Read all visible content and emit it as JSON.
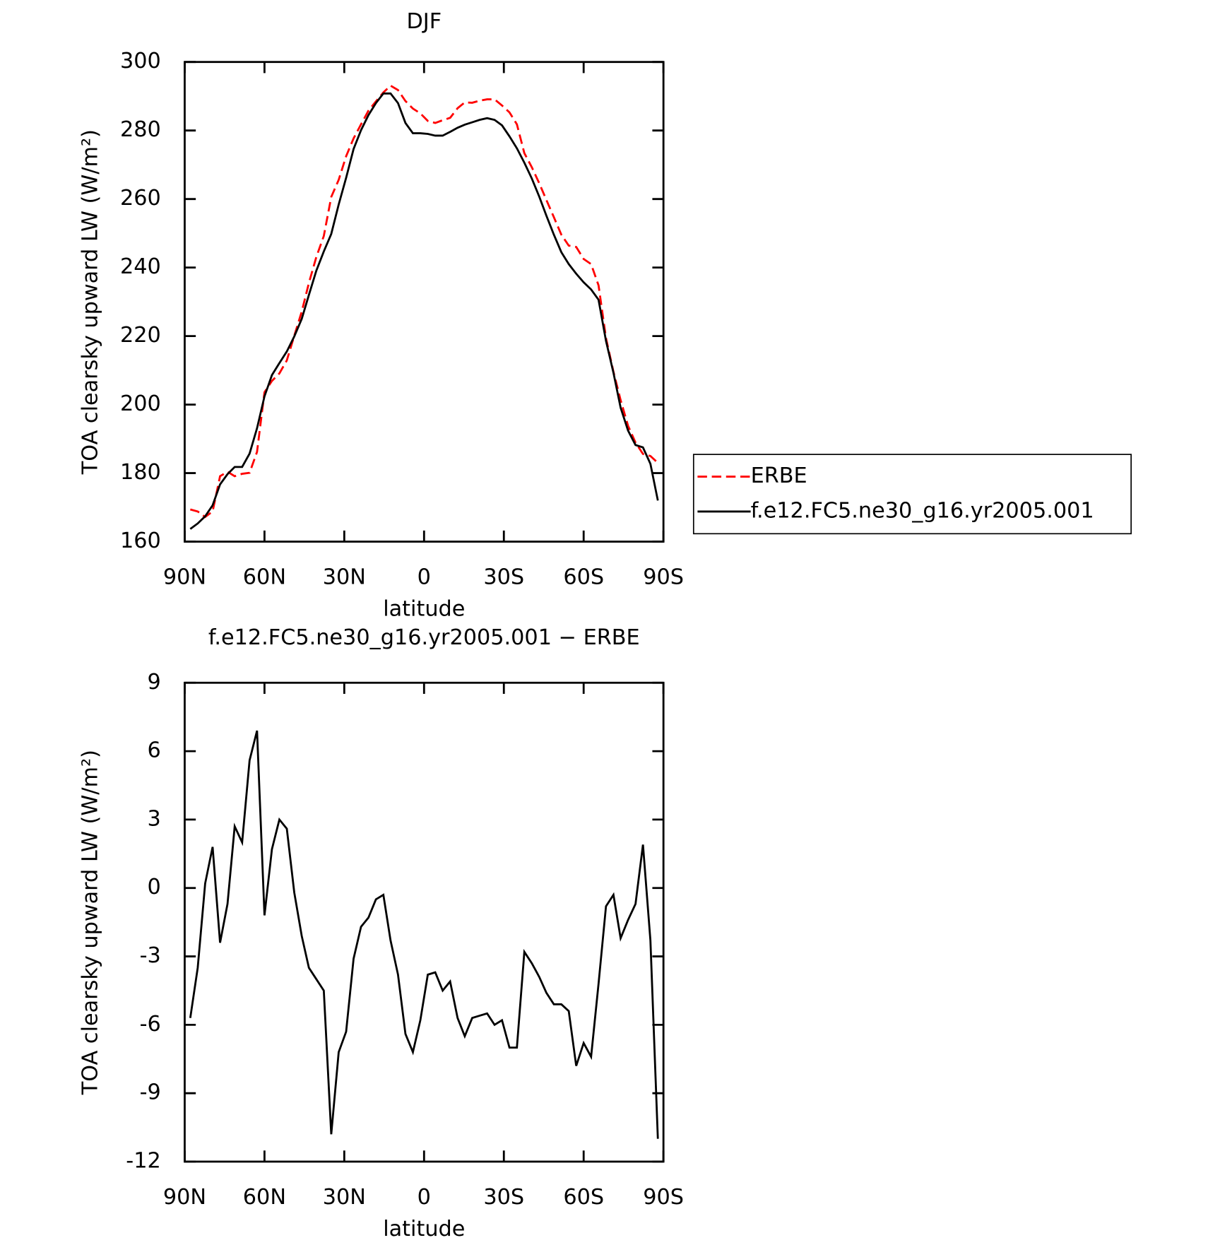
{
  "chart_data": [
    {
      "type": "line",
      "title": "DJF",
      "x_label": "latitude",
      "y_label": "TOA clearsky upward LW (W/m²)",
      "x": [
        87.9,
        85.1,
        82.3,
        79.5,
        76.7,
        73.9,
        71.2,
        68.4,
        65.6,
        62.8,
        60.0,
        57.2,
        54.4,
        51.6,
        48.8,
        46.0,
        43.3,
        40.5,
        37.7,
        34.9,
        32.1,
        29.3,
        26.5,
        23.7,
        20.9,
        18.1,
        15.3,
        12.6,
        9.8,
        7.0,
        4.2,
        1.4,
        -1.4,
        -4.2,
        -7.0,
        -9.8,
        -12.6,
        -15.3,
        -18.1,
        -20.9,
        -23.7,
        -26.5,
        -29.3,
        -32.1,
        -34.9,
        -37.7,
        -40.5,
        -43.3,
        -46.0,
        -48.8,
        -51.6,
        -54.4,
        -57.2,
        -60.0,
        -62.8,
        -65.6,
        -68.4,
        -71.2,
        -73.9,
        -76.7,
        -79.5,
        -82.3,
        -85.1,
        -87.9
      ],
      "series": [
        {
          "name": "ERBE",
          "color": "#ff0000",
          "line_style": "dashed",
          "values": [
            169.4,
            168.8,
            167.2,
            168.8,
            179.1,
            180.4,
            179.1,
            179.8,
            180.1,
            186.2,
            203.6,
            206.9,
            209.1,
            212.9,
            220.1,
            227.1,
            235.5,
            243.1,
            249.2,
            260.6,
            265.6,
            272.5,
            277.7,
            281.8,
            285.8,
            288.5,
            291.1,
            293.1,
            291.8,
            288.6,
            286.4,
            285.0,
            282.8,
            282.2,
            283.0,
            283.7,
            286.5,
            288.2,
            288.1,
            288.7,
            289.1,
            289.1,
            287.3,
            285.3,
            281.8,
            273.4,
            269.3,
            264.6,
            259.7,
            254.7,
            249.6,
            246.4,
            246.0,
            242.5,
            241.0,
            234.8,
            219.4,
            209.6,
            201.3,
            193.8,
            188.9,
            185.6,
            185.0,
            183.0
          ]
        },
        {
          "name": "f.e12.FC5.ne30_g16.yr2005.001",
          "color": "#000000",
          "line_style": "solid",
          "values": [
            163.7,
            165.3,
            167.4,
            170.6,
            176.7,
            179.7,
            181.8,
            181.8,
            185.7,
            193.1,
            202.4,
            208.6,
            212.1,
            215.5,
            219.9,
            225.0,
            232.0,
            239.1,
            244.7,
            249.8,
            258.4,
            266.2,
            274.6,
            280.1,
            284.5,
            288.0,
            290.8,
            290.8,
            288.0,
            282.2,
            279.2,
            279.2,
            279.0,
            278.5,
            278.5,
            279.6,
            280.8,
            281.7,
            282.4,
            283.1,
            283.6,
            283.1,
            281.5,
            278.3,
            274.8,
            270.6,
            266.0,
            260.7,
            255.1,
            249.6,
            244.5,
            241.0,
            238.2,
            235.7,
            233.6,
            230.6,
            218.6,
            209.3,
            199.1,
            192.4,
            188.2,
            187.5,
            182.7,
            172.0
          ]
        }
      ],
      "xlim": [
        90,
        -90
      ],
      "xticks": [
        {
          "value": 90,
          "label": "90N"
        },
        {
          "value": 60,
          "label": "60N"
        },
        {
          "value": 30,
          "label": "30N"
        },
        0,
        {
          "value": -30,
          "label": "30S"
        },
        {
          "value": -60,
          "label": "60S"
        },
        {
          "value": -90,
          "label": "90S"
        }
      ],
      "ylim": [
        160,
        300
      ],
      "yticks": [
        160,
        180,
        200,
        220,
        240,
        260,
        280,
        300
      ],
      "legend": "right"
    },
    {
      "type": "line",
      "title": "f.e12.FC5.ne30_g16.yr2005.001 − ERBE",
      "x_label": "latitude",
      "y_label": "TOA clearsky upward LW (W/m²)",
      "x": [
        87.9,
        85.1,
        82.3,
        79.5,
        76.7,
        73.9,
        71.2,
        68.4,
        65.6,
        62.8,
        60.0,
        57.2,
        54.4,
        51.6,
        48.8,
        46.0,
        43.3,
        40.5,
        37.7,
        34.9,
        32.1,
        29.3,
        26.5,
        23.7,
        20.9,
        18.1,
        15.3,
        12.6,
        9.8,
        7.0,
        4.2,
        1.4,
        -1.4,
        -4.2,
        -7.0,
        -9.8,
        -12.6,
        -15.3,
        -18.1,
        -20.9,
        -23.7,
        -26.5,
        -29.3,
        -32.1,
        -34.9,
        -37.7,
        -40.5,
        -43.3,
        -46.0,
        -48.8,
        -51.6,
        -54.4,
        -57.2,
        -60.0,
        -62.8,
        -65.6,
        -68.4,
        -71.2,
        -73.9,
        -76.7,
        -79.5,
        -82.3,
        -85.1,
        -87.9
      ],
      "values": [
        -5.7,
        -3.5,
        0.2,
        1.8,
        -2.4,
        -0.7,
        2.7,
        2.0,
        5.6,
        6.9,
        -1.2,
        1.7,
        3.0,
        2.6,
        -0.2,
        -2.1,
        -3.5,
        -4.0,
        -4.5,
        -10.8,
        -7.2,
        -6.3,
        -3.1,
        -1.7,
        -1.3,
        -0.5,
        -0.3,
        -2.3,
        -3.8,
        -6.4,
        -7.2,
        -5.8,
        -3.8,
        -3.7,
        -4.5,
        -4.1,
        -5.7,
        -6.5,
        -5.7,
        -5.6,
        -5.5,
        -6.0,
        -5.8,
        -7.0,
        -7.0,
        -2.8,
        -3.3,
        -3.9,
        -4.6,
        -5.1,
        -5.1,
        -5.4,
        -7.8,
        -6.8,
        -7.4,
        -4.2,
        -0.8,
        -0.3,
        -2.2,
        -1.4,
        -0.7,
        1.9,
        -2.3,
        -11.0
      ],
      "color": "#000000",
      "xlim": [
        90,
        -90
      ],
      "xticks": [
        {
          "value": 90,
          "label": "90N"
        },
        {
          "value": 60,
          "label": "60N"
        },
        {
          "value": 30,
          "label": "30N"
        },
        0,
        {
          "value": -30,
          "label": "30S"
        },
        {
          "value": -60,
          "label": "60S"
        },
        {
          "value": -90,
          "label": "90S"
        }
      ],
      "ylim": [
        -12,
        9
      ],
      "yticks": [
        -12,
        -9,
        -6,
        -3,
        0,
        3,
        6,
        9
      ]
    }
  ]
}
